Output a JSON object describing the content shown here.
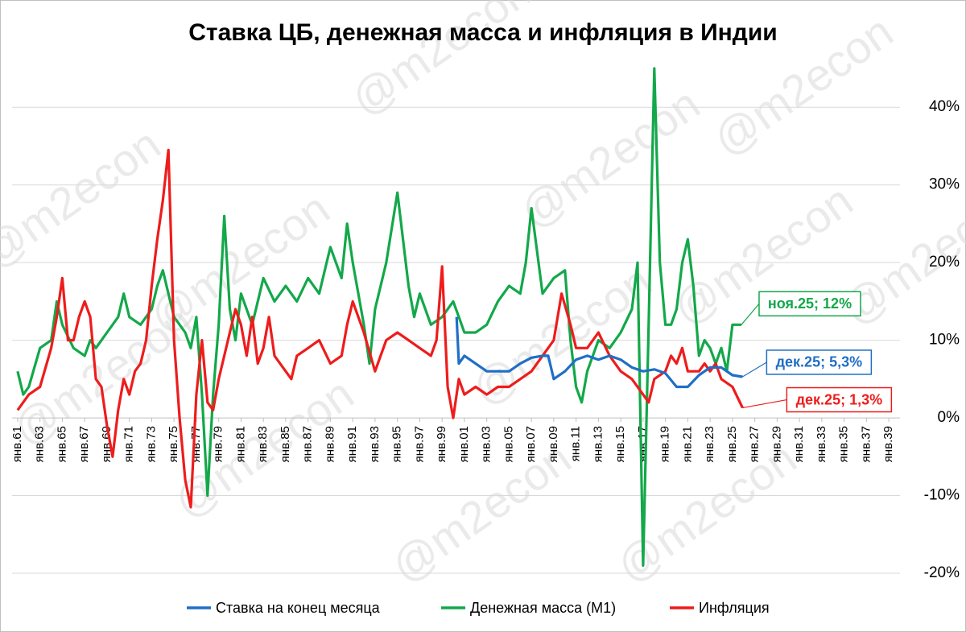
{
  "chart_data": {
    "type": "line",
    "title": "Ставка ЦБ, денежная масса и инфляция в Индии",
    "watermark": "@m2econ",
    "xlim": [
      1960.5,
      2040
    ],
    "ylim": [
      -20,
      45
    ],
    "yticks": [
      {
        "value": -20,
        "label": "-20%"
      },
      {
        "value": -10,
        "label": "-10%"
      },
      {
        "value": 0,
        "label": "0%"
      },
      {
        "value": 10,
        "label": "10%"
      },
      {
        "value": 20,
        "label": "20%"
      },
      {
        "value": 30,
        "label": "30%"
      },
      {
        "value": 40,
        "label": "40%"
      }
    ],
    "xticks": [
      {
        "value": 1961,
        "label": "янв.61"
      },
      {
        "value": 1963,
        "label": "янв.63"
      },
      {
        "value": 1965,
        "label": "янв.65"
      },
      {
        "value": 1967,
        "label": "янв.67"
      },
      {
        "value": 1969,
        "label": "янв.69"
      },
      {
        "value": 1971,
        "label": "янв.71"
      },
      {
        "value": 1973,
        "label": "янв.73"
      },
      {
        "value": 1975,
        "label": "янв.75"
      },
      {
        "value": 1977,
        "label": "янв.77"
      },
      {
        "value": 1979,
        "label": "янв.79"
      },
      {
        "value": 1981,
        "label": "янв.81"
      },
      {
        "value": 1983,
        "label": "янв.83"
      },
      {
        "value": 1985,
        "label": "янв.85"
      },
      {
        "value": 1987,
        "label": "янв.87"
      },
      {
        "value": 1989,
        "label": "янв.89"
      },
      {
        "value": 1991,
        "label": "янв.91"
      },
      {
        "value": 1993,
        "label": "янв.93"
      },
      {
        "value": 1995,
        "label": "янв.95"
      },
      {
        "value": 1997,
        "label": "янв.97"
      },
      {
        "value": 1999,
        "label": "янв.99"
      },
      {
        "value": 2001,
        "label": "янв.01"
      },
      {
        "value": 2003,
        "label": "янв.03"
      },
      {
        "value": 2005,
        "label": "янв.05"
      },
      {
        "value": 2007,
        "label": "янв.07"
      },
      {
        "value": 2009,
        "label": "янв.09"
      },
      {
        "value": 2011,
        "label": "янв.11"
      },
      {
        "value": 2013,
        "label": "янв.13"
      },
      {
        "value": 2015,
        "label": "янв.15"
      },
      {
        "value": 2017,
        "label": "янв.17"
      },
      {
        "value": 2019,
        "label": "янв.19"
      },
      {
        "value": 2021,
        "label": "янв.21"
      },
      {
        "value": 2023,
        "label": "янв.23"
      },
      {
        "value": 2025,
        "label": "янв.25"
      },
      {
        "value": 2027,
        "label": "янв.27"
      },
      {
        "value": 2029,
        "label": "янв.29"
      },
      {
        "value": 2031,
        "label": "янв.31"
      },
      {
        "value": 2033,
        "label": "янв.33"
      },
      {
        "value": 2035,
        "label": "янв.35"
      },
      {
        "value": 2037,
        "label": "янв.37"
      },
      {
        "value": 2039,
        "label": "янв.39"
      }
    ],
    "grid": true,
    "legend": "bottom",
    "series": [
      {
        "name": "Ставка на конец месяца",
        "color": "#1f6fc5",
        "x": [
          2000.3,
          2000.5,
          2001,
          2002,
          2003,
          2004,
          2005,
          2006,
          2007,
          2008,
          2008.5,
          2009,
          2010,
          2011,
          2012,
          2013,
          2014,
          2015,
          2016,
          2017,
          2018,
          2019,
          2020,
          2021,
          2022,
          2023,
          2024,
          2025,
          2025.9
        ],
        "values": [
          13,
          7,
          8,
          7,
          6,
          6,
          6,
          7,
          7.75,
          8,
          8,
          5,
          6,
          7.5,
          8,
          7.5,
          8,
          7.5,
          6.5,
          6,
          6.25,
          5.75,
          4,
          4,
          5.5,
          6.5,
          6.5,
          5.5,
          5.3
        ]
      },
      {
        "name": "Денежная масса (М1)",
        "color": "#13a84a",
        "x": [
          1961,
          1961.5,
          1962,
          1963,
          1964,
          1964.5,
          1965,
          1966,
          1967,
          1967.5,
          1968,
          1969,
          1970,
          1970.5,
          1971,
          1972,
          1973,
          1973.5,
          1974,
          1974.5,
          1975,
          1976,
          1976.5,
          1977,
          1977.5,
          1978,
          1978.5,
          1979,
          1979.5,
          1980,
          1980.5,
          1981,
          1982,
          1983,
          1984,
          1985,
          1986,
          1987,
          1988,
          1989,
          1990,
          1990.5,
          1991,
          1991.5,
          1992,
          1992.5,
          1993,
          1994,
          1995,
          1996,
          1996.5,
          1997,
          1998,
          1999,
          2000,
          2000.5,
          2001,
          2002,
          2003,
          2004,
          2005,
          2006,
          2006.5,
          2007,
          2008,
          2009,
          2010,
          2010.5,
          2011,
          2011.5,
          2012,
          2013,
          2014,
          2015,
          2016,
          2016.5,
          2017,
          2017.5,
          2018,
          2018.5,
          2019,
          2019.5,
          2020,
          2020.5,
          2021,
          2021.5,
          2022,
          2022.5,
          2023,
          2023.5,
          2024,
          2024.5,
          2025,
          2025.8
        ],
        "values": [
          6,
          3,
          4,
          9,
          10,
          15,
          12,
          9,
          8,
          10,
          9,
          11,
          13,
          16,
          13,
          12,
          14,
          17,
          19,
          16,
          13,
          11,
          9,
          13,
          3,
          -10,
          3,
          12,
          26,
          14,
          10,
          16,
          12,
          18,
          15,
          17,
          15,
          18,
          16,
          22,
          18,
          25,
          20,
          16,
          12,
          7,
          14,
          20,
          29,
          17,
          13,
          16,
          12,
          13,
          15,
          13,
          11,
          11,
          12,
          15,
          17,
          16,
          20,
          27,
          16,
          18,
          19,
          10,
          4,
          2,
          6,
          10,
          9,
          11,
          14,
          20,
          -19,
          12,
          45,
          20,
          12,
          12,
          14,
          20,
          23,
          17,
          8,
          10,
          9,
          7,
          9,
          6,
          12,
          12
        ]
      },
      {
        "name": "Инфляция",
        "color": "#ee1c1c",
        "x": [
          1961,
          1962,
          1963,
          1964,
          1964.5,
          1965,
          1965.5,
          1966,
          1966.5,
          1967,
          1967.5,
          1968,
          1968.5,
          1969,
          1969.5,
          1970,
          1970.5,
          1971,
          1971.5,
          1972,
          1972.5,
          1973,
          1973.5,
          1974,
          1974.5,
          1975,
          1975.5,
          1976,
          1976.5,
          1977,
          1977.5,
          1978,
          1978.5,
          1979,
          1980,
          1980.5,
          1981,
          1981.5,
          1982,
          1982.5,
          1983,
          1983.5,
          1984,
          1985,
          1985.5,
          1986,
          1987,
          1988,
          1989,
          1990,
          1990.5,
          1991,
          1991.5,
          1992,
          1993,
          1993.5,
          1994,
          1995,
          1996,
          1997,
          1998,
          1998.5,
          1999,
          1999.5,
          2000,
          2000.5,
          2001,
          2002,
          2003,
          2004,
          2005,
          2006,
          2007,
          2008,
          2009,
          2009.7,
          2010.5,
          2011,
          2012,
          2013,
          2014,
          2015,
          2016,
          2017,
          2017.5,
          2018,
          2019,
          2019.5,
          2020,
          2020.5,
          2021,
          2022,
          2022.5,
          2023,
          2023.5,
          2024,
          2025,
          2025.9
        ],
        "values": [
          1,
          3,
          4,
          9,
          13,
          18,
          10,
          10,
          13,
          15,
          13,
          5,
          4,
          -1,
          -5,
          1,
          5,
          3,
          6,
          7,
          10,
          17,
          23,
          28,
          34.5,
          10,
          0,
          -8,
          -11.5,
          3,
          10,
          2,
          1,
          5,
          11,
          14,
          12,
          8,
          13,
          7,
          9,
          13,
          8,
          6,
          5,
          8,
          9,
          10,
          7,
          8,
          12,
          15,
          13,
          11,
          6,
          8,
          10,
          11,
          10,
          9,
          8,
          10,
          19.5,
          4,
          0,
          5,
          3,
          4,
          3,
          4,
          4,
          5,
          6,
          8,
          10,
          16,
          12,
          9,
          9,
          11,
          8,
          6,
          5,
          3,
          2,
          5,
          6,
          8,
          7,
          9,
          6,
          6,
          7,
          6,
          7,
          5,
          4,
          1.3
        ]
      }
    ],
    "annotations": [
      "дек.25; 5,3%",
      "ноя.25; 12%",
      "дек.25; 1,3%"
    ]
  }
}
